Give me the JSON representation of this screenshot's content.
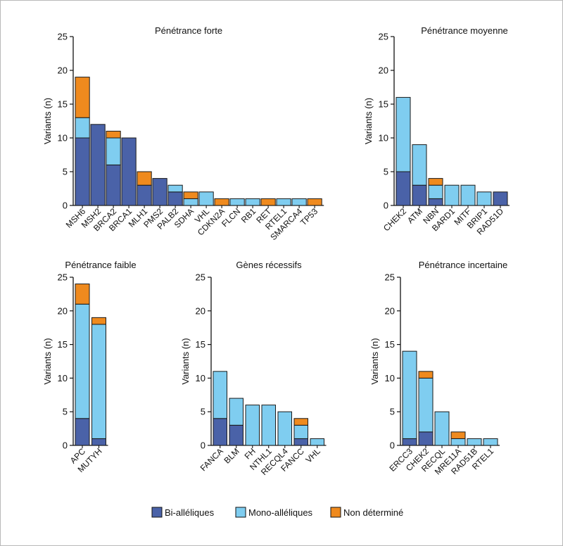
{
  "chart_data": [
    {
      "type": "bar",
      "stacked": true,
      "title": "Pénétrance forte",
      "ylabel": "Variants (n)",
      "ylim": [
        0,
        25
      ],
      "yticks": [
        0,
        5,
        10,
        15,
        20,
        25
      ],
      "categories": [
        "MSH6",
        "MSH2",
        "BRCA2",
        "BRCA1",
        "MLH1",
        "PMS2",
        "PALB2",
        "SDHA",
        "VHL",
        "CDKN2A",
        "FLCN",
        "RB1",
        "RET",
        "RTEL1",
        "SMARCA4",
        "TP53"
      ],
      "series": [
        {
          "name": "Bi-alléliques",
          "values": [
            10,
            12,
            6,
            10,
            3,
            4,
            2,
            0,
            0,
            0,
            0,
            0,
            0,
            0,
            0,
            0
          ]
        },
        {
          "name": "Mono-alléliques",
          "values": [
            3,
            0,
            4,
            0,
            0,
            0,
            1,
            1,
            2,
            0,
            1,
            1,
            0,
            1,
            1,
            0
          ]
        },
        {
          "name": "Non déterminé",
          "values": [
            6,
            0,
            1,
            0,
            2,
            0,
            0,
            1,
            0,
            1,
            0,
            0,
            1,
            0,
            0,
            1
          ]
        }
      ]
    },
    {
      "type": "bar",
      "stacked": true,
      "title": "Pénétrance moyenne",
      "ylabel": "Variants (n)",
      "ylim": [
        0,
        25
      ],
      "yticks": [
        0,
        5,
        10,
        15,
        20,
        25
      ],
      "categories": [
        "CHEK2",
        "ATM",
        "NBN",
        "BARD1",
        "MITF",
        "BRIP1",
        "RAD51D"
      ],
      "series": [
        {
          "name": "Bi-alléliques",
          "values": [
            5,
            3,
            1,
            0,
            0,
            0,
            2
          ]
        },
        {
          "name": "Mono-alléliques",
          "values": [
            11,
            6,
            2,
            3,
            3,
            2,
            0
          ]
        },
        {
          "name": "Non déterminé",
          "values": [
            0,
            0,
            1,
            0,
            0,
            0,
            0
          ]
        }
      ]
    },
    {
      "type": "bar",
      "stacked": true,
      "title": "Pénétrance faible",
      "ylabel": "Variants (n)",
      "ylim": [
        0,
        25
      ],
      "yticks": [
        0,
        5,
        10,
        15,
        20,
        25
      ],
      "categories": [
        "APC",
        "MUTYH"
      ],
      "series": [
        {
          "name": "Bi-alléliques",
          "values": [
            4,
            1
          ]
        },
        {
          "name": "Mono-alléliques",
          "values": [
            17,
            17
          ]
        },
        {
          "name": "Non déterminé",
          "values": [
            3,
            1
          ]
        }
      ]
    },
    {
      "type": "bar",
      "stacked": true,
      "title": "Gènes récessifs",
      "ylabel": "Variants (n)",
      "ylim": [
        0,
        25
      ],
      "yticks": [
        0,
        5,
        10,
        15,
        20,
        25
      ],
      "categories": [
        "FANCA",
        "BLM",
        "FH",
        "NTHL1",
        "RECQL4",
        "FANCC",
        "VHL"
      ],
      "series": [
        {
          "name": "Bi-alléliques",
          "values": [
            4,
            3,
            0,
            0,
            0,
            1,
            0
          ]
        },
        {
          "name": "Mono-alléliques",
          "values": [
            7,
            4,
            6,
            6,
            5,
            2,
            1
          ]
        },
        {
          "name": "Non déterminé",
          "values": [
            0,
            0,
            0,
            0,
            0,
            1,
            0
          ]
        }
      ]
    },
    {
      "type": "bar",
      "stacked": true,
      "title": "Pénétrance incertaine",
      "ylabel": "Variants (n)",
      "ylim": [
        0,
        25
      ],
      "yticks": [
        0,
        5,
        10,
        15,
        20,
        25
      ],
      "categories": [
        "ERCC3",
        "CHEK2",
        "RECQL",
        "MRE11A",
        "RAD51B",
        "RTEL1"
      ],
      "series": [
        {
          "name": "Bi-alléliques",
          "values": [
            1,
            2,
            0,
            0,
            0,
            0
          ]
        },
        {
          "name": "Mono-alléliques",
          "values": [
            13,
            8,
            5,
            1,
            1,
            1
          ]
        },
        {
          "name": "Non déterminé",
          "values": [
            0,
            1,
            0,
            1,
            0,
            0
          ]
        }
      ]
    }
  ],
  "legend": {
    "placement": "bottom-center",
    "items": [
      {
        "label": "Bi-alléliques",
        "color": "#4a62a8"
      },
      {
        "label": "Mono-alléliques",
        "color": "#7fcdf0"
      },
      {
        "label": "Non déterminé",
        "color": "#ef8a1e"
      }
    ]
  }
}
